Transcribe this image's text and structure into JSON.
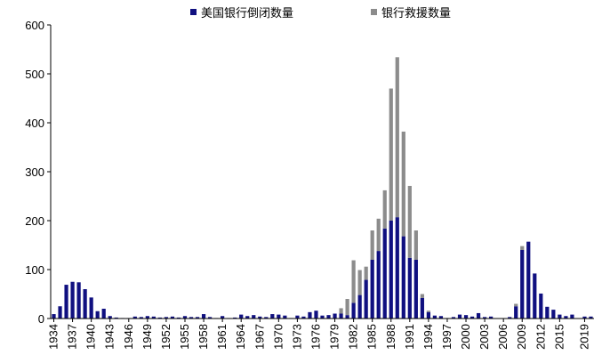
{
  "chart_data": {
    "type": "bar",
    "stacked": true,
    "ylim": [
      0,
      600
    ],
    "yticks": [
      0,
      100,
      200,
      300,
      400,
      500,
      600
    ],
    "x_tick_labels": [
      "1934",
      "1937",
      "1940",
      "1943",
      "1946",
      "1949",
      "1952",
      "1955",
      "1958",
      "1961",
      "1964",
      "1967",
      "1970",
      "1973",
      "1976",
      "1979",
      "1982",
      "1985",
      "1988",
      "1991",
      "1994",
      "1997",
      "2000",
      "2003",
      "2006",
      "2009",
      "2012",
      "2015",
      "2019"
    ],
    "legend": {
      "placement": "top-center"
    },
    "colors": {
      "failures": "#101080",
      "rescues": "#8c8c8c",
      "axis": "#000000"
    },
    "categories": [
      1934,
      1935,
      1936,
      1937,
      1938,
      1939,
      1940,
      1941,
      1942,
      1943,
      1944,
      1945,
      1946,
      1947,
      1948,
      1949,
      1950,
      1951,
      1952,
      1953,
      1954,
      1955,
      1956,
      1957,
      1958,
      1959,
      1960,
      1961,
      1962,
      1963,
      1964,
      1965,
      1966,
      1967,
      1968,
      1969,
      1970,
      1971,
      1972,
      1973,
      1974,
      1975,
      1976,
      1977,
      1978,
      1979,
      1980,
      1981,
      1982,
      1983,
      1984,
      1985,
      1986,
      1987,
      1988,
      1989,
      1990,
      1991,
      1992,
      1993,
      1994,
      1995,
      1996,
      1997,
      1998,
      1999,
      2000,
      2001,
      2002,
      2003,
      2004,
      2005,
      2006,
      2007,
      2008,
      2009,
      2010,
      2011,
      2012,
      2013,
      2014,
      2015,
      2016,
      2017,
      2018,
      2019,
      2020
    ],
    "series": [
      {
        "name": "美国银行倒闭数量",
        "values": [
          9,
          25,
          69,
          75,
          74,
          60,
          43,
          15,
          20,
          5,
          2,
          1,
          1,
          4,
          3,
          5,
          4,
          2,
          3,
          4,
          2,
          5,
          3,
          3,
          9,
          3,
          1,
          5,
          1,
          2,
          8,
          5,
          7,
          4,
          3,
          9,
          8,
          6,
          1,
          6,
          4,
          13,
          16,
          6,
          7,
          10,
          10,
          7,
          32,
          48,
          79,
          120,
          138,
          184,
          200,
          207,
          168,
          124,
          120,
          42,
          13,
          6,
          5,
          1,
          3,
          8,
          7,
          4,
          11,
          3,
          4,
          0,
          0,
          3,
          25,
          140,
          157,
          92,
          51,
          24,
          18,
          8,
          5,
          8,
          0,
          4,
          4
        ]
      },
      {
        "name": "银行救援数量",
        "values": [
          0,
          0,
          0,
          0,
          0,
          0,
          0,
          0,
          0,
          0,
          0,
          0,
          0,
          0,
          0,
          0,
          0,
          0,
          0,
          0,
          0,
          0,
          0,
          0,
          0,
          0,
          0,
          0,
          0,
          0,
          0,
          0,
          0,
          0,
          0,
          0,
          0,
          0,
          0,
          0,
          0,
          0,
          0,
          0,
          0,
          0,
          11,
          33,
          87,
          51,
          27,
          60,
          66,
          78,
          270,
          327,
          214,
          147,
          60,
          8,
          3,
          0,
          0,
          0,
          0,
          0,
          0,
          0,
          0,
          0,
          0,
          0,
          0,
          0,
          5,
          8,
          0,
          0,
          0,
          0,
          0,
          0,
          0,
          0,
          0,
          0,
          0
        ]
      }
    ]
  }
}
